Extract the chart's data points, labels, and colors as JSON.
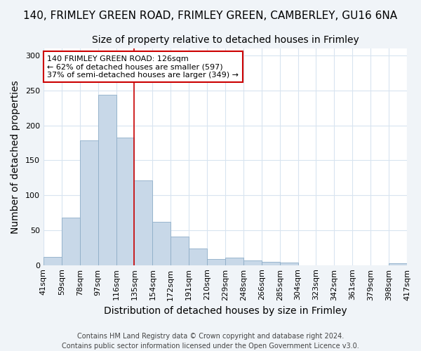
{
  "title": "140, FRIMLEY GREEN ROAD, FRIMLEY GREEN, CAMBERLEY, GU16 6NA",
  "subtitle": "Size of property relative to detached houses in Frimley",
  "xlabel": "Distribution of detached houses by size in Frimley",
  "ylabel_text": "Number of detached properties",
  "bar_values": [
    12,
    68,
    179,
    244,
    183,
    121,
    62,
    41,
    24,
    9,
    11,
    7,
    5,
    4,
    0,
    0,
    0,
    0,
    0,
    3
  ],
  "categories": [
    "41sqm",
    "59sqm",
    "78sqm",
    "97sqm",
    "116sqm",
    "135sqm",
    "154sqm",
    "172sqm",
    "191sqm",
    "210sqm",
    "229sqm",
    "248sqm",
    "266sqm",
    "285sqm",
    "304sqm",
    "323sqm",
    "342sqm",
    "361sqm",
    "379sqm",
    "398sqm",
    "417sqm"
  ],
  "bar_color": "#c8d8e8",
  "bar_edge_color": "#8eaec8",
  "vline_x": 4.5,
  "vline_color": "#cc0000",
  "annotation_text": "140 FRIMLEY GREEN ROAD: 126sqm\n← 62% of detached houses are smaller (597)\n37% of semi-detached houses are larger (349) →",
  "annotation_box_color": "#ffffff",
  "annotation_box_edge_color": "#cc0000",
  "ylim": [
    0,
    310
  ],
  "yticks": [
    0,
    50,
    100,
    150,
    200,
    250,
    300
  ],
  "plot_bg_color": "#ffffff",
  "fig_bg_color": "#f0f4f8",
  "grid_color": "#d8e4f0",
  "footer": "Contains HM Land Registry data © Crown copyright and database right 2024.\nContains public sector information licensed under the Open Government Licence v3.0.",
  "title_fontsize": 11,
  "subtitle_fontsize": 10,
  "axis_label_fontsize": 10,
  "tick_fontsize": 8,
  "annotation_fontsize": 8,
  "footer_fontsize": 7
}
